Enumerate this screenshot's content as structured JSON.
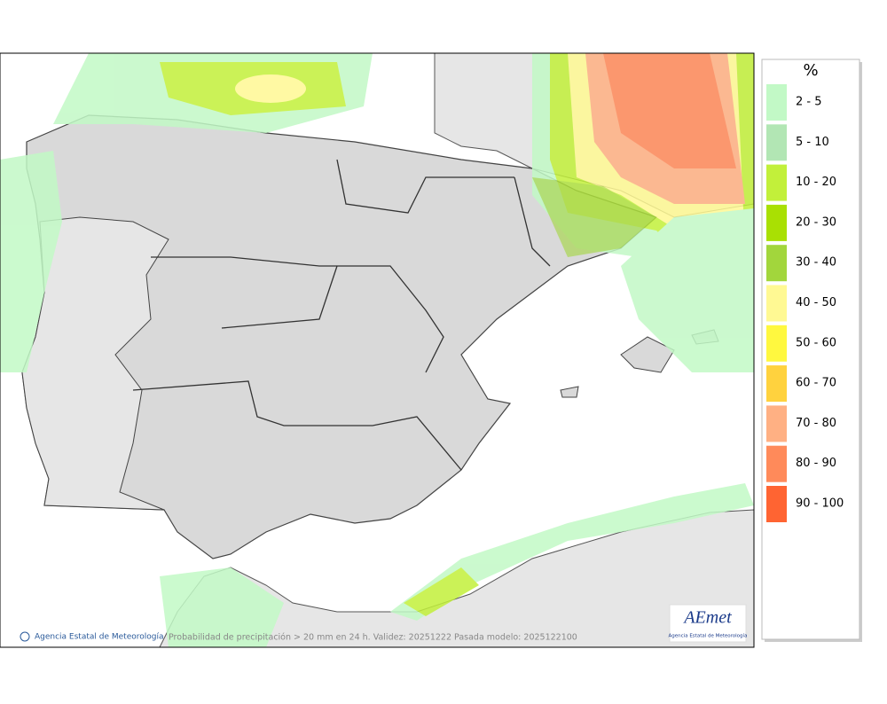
{
  "legend": {
    "title": "%",
    "items": [
      {
        "label": "2 - 5",
        "color": "#c2f9c6"
      },
      {
        "label": "5 - 10",
        "color": "#b2e6b4"
      },
      {
        "label": "10 - 20",
        "color": "#c2f03a"
      },
      {
        "label": "20 - 30",
        "color": "#a9e003"
      },
      {
        "label": "30 - 40",
        "color": "#a2d63c"
      },
      {
        "label": "40 - 50",
        "color": "#fff993"
      },
      {
        "label": "50 - 60",
        "color": "#fff83f"
      },
      {
        "label": "60 - 70",
        "color": "#ffd23e"
      },
      {
        "label": "70 - 80",
        "color": "#ffb083"
      },
      {
        "label": "80 - 90",
        "color": "#ff8a5a"
      },
      {
        "label": "90 - 100",
        "color": "#ff6432"
      }
    ]
  },
  "footer": {
    "agency": "Agencia Estatal de Meteorología",
    "caption": "Probabilidad de precipitación > 20 mm en 24 h. Validez: 20251222 Pasada modelo: 2025122100"
  },
  "logo": {
    "name": "AEmet",
    "subtitle": "Agencia Estatal de Meteorología"
  }
}
